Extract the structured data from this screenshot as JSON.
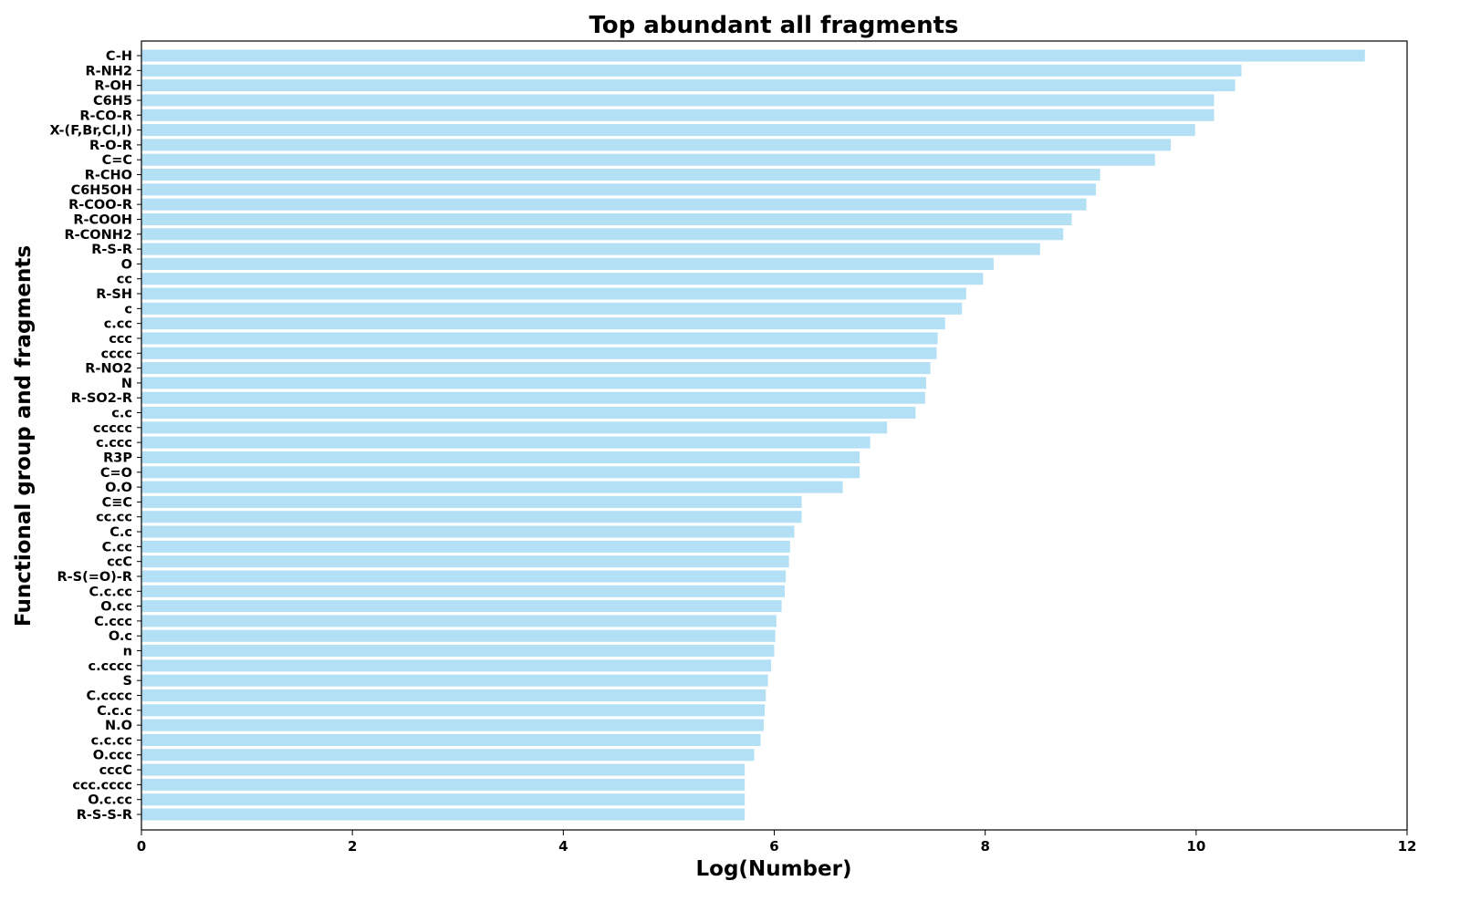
{
  "chart_data": {
    "type": "bar",
    "orientation": "horizontal",
    "title": "Top abundant all fragments",
    "xlabel": "Log(Number)",
    "ylabel": "Functional group and fragments",
    "xlim": [
      0,
      12
    ],
    "xticks": [
      "0",
      "2",
      "4",
      "6",
      "8",
      "10",
      "12"
    ],
    "grid": false,
    "bar_color": "#b3e0f4",
    "categories": [
      "C-H",
      "R-NH2",
      "R-OH",
      "C6H5",
      "R-CO-R",
      "X-(F,Br,Cl,I)",
      "R-O-R",
      "C=C",
      "R-CHO",
      "C6H5OH",
      "R-COO-R",
      "R-COOH",
      "R-CONH2",
      "R-S-R",
      "O",
      "cc",
      "R-SH",
      "c",
      "c.cc",
      "ccc",
      "cccc",
      "R-NO2",
      "N",
      "R-SO2-R",
      "c.c",
      "ccccc",
      "c.ccc",
      "R3P",
      "C=O",
      "O.O",
      "C≡C",
      "cc.cc",
      "C.c",
      "C.cc",
      "ccC",
      "R-S(=O)-R",
      "C.c.cc",
      "O.cc",
      "C.ccc",
      "O.c",
      "n",
      "c.cccc",
      "S",
      "C.cccc",
      "C.c.c",
      "N.O",
      "c.c.cc",
      "O.ccc",
      "cccC",
      "ccc.cccc",
      "O.c.cc",
      "R-S-S-R"
    ],
    "values": [
      11.6,
      10.43,
      10.37,
      10.17,
      10.17,
      9.99,
      9.76,
      9.61,
      9.09,
      9.05,
      8.96,
      8.82,
      8.74,
      8.52,
      8.08,
      7.98,
      7.82,
      7.78,
      7.62,
      7.55,
      7.54,
      7.48,
      7.44,
      7.43,
      7.34,
      7.07,
      6.91,
      6.81,
      6.81,
      6.65,
      6.26,
      6.26,
      6.19,
      6.15,
      6.14,
      6.11,
      6.1,
      6.07,
      6.02,
      6.01,
      6.0,
      5.97,
      5.94,
      5.92,
      5.91,
      5.9,
      5.87,
      5.81,
      5.72,
      5.72,
      5.72,
      5.72
    ]
  }
}
